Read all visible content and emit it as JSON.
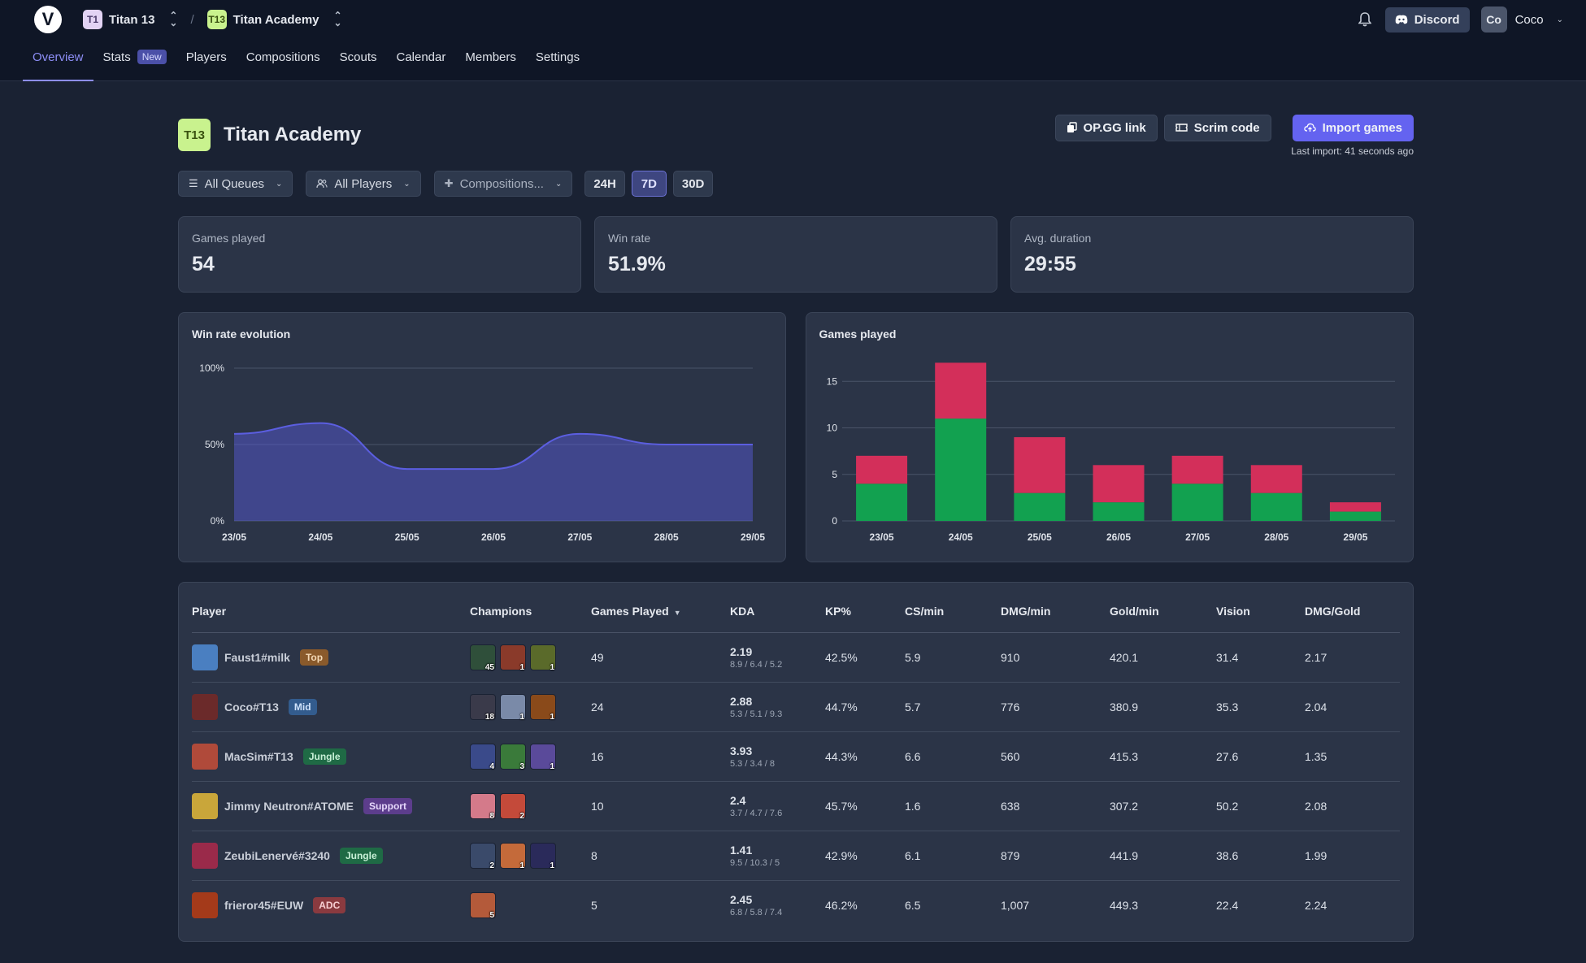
{
  "header": {
    "org_initials": "T1",
    "org_name": "Titan 13",
    "team_initials": "T13",
    "team_name": "Titan Academy",
    "discord_label": "Discord",
    "user_initials": "Co",
    "user_name": "Coco"
  },
  "nav": [
    {
      "label": "Overview",
      "active": true
    },
    {
      "label": "Stats",
      "badge": "New"
    },
    {
      "label": "Players"
    },
    {
      "label": "Compositions"
    },
    {
      "label": "Scouts"
    },
    {
      "label": "Calendar"
    },
    {
      "label": "Members"
    },
    {
      "label": "Settings"
    }
  ],
  "page": {
    "team_initials": "T13",
    "title": "Titan Academy",
    "opgg_label": "OP.GG link",
    "scrim_label": "Scrim code",
    "import_label": "Import games",
    "last_import": "Last import: 41 seconds ago"
  },
  "filters": {
    "queues": "All Queues",
    "players": "All Players",
    "compositions": "Compositions...",
    "ranges": [
      "24H",
      "7D",
      "30D"
    ],
    "active_range": "7D"
  },
  "stats": [
    {
      "label": "Games played",
      "value": "54"
    },
    {
      "label": "Win rate",
      "value": "51.9%"
    },
    {
      "label": "Avg. duration",
      "value": "29:55"
    }
  ],
  "chart_data": [
    {
      "type": "area",
      "title": "Win rate evolution",
      "x": [
        "23/05",
        "24/05",
        "25/05",
        "26/05",
        "27/05",
        "28/05",
        "29/05"
      ],
      "y_ticks": [
        "100%",
        "50%",
        "0%"
      ],
      "ylim": [
        0,
        100
      ],
      "values": [
        57,
        64,
        34,
        34,
        57,
        50,
        50
      ],
      "color": "#5b5ee0"
    },
    {
      "type": "bar",
      "title": "Games played",
      "categories": [
        "23/05",
        "24/05",
        "25/05",
        "26/05",
        "27/05",
        "28/05",
        "29/05"
      ],
      "y_ticks": [
        "15",
        "10",
        "5",
        "0"
      ],
      "ylim": [
        0,
        17
      ],
      "series": [
        {
          "values": [
            4,
            11,
            3,
            2,
            4,
            3,
            1
          ],
          "color": "#12a150"
        },
        {
          "values": [
            3,
            6,
            6,
            4,
            3,
            3,
            1
          ],
          "color": "#d32f5a"
        }
      ]
    }
  ],
  "table": {
    "headers": [
      "Player",
      "Champions",
      "Games Played",
      "KDA",
      "KP%",
      "CS/min",
      "DMG/min",
      "Gold/min",
      "Vision",
      "DMG/Gold"
    ],
    "rows": [
      {
        "player": "Faust1#milk",
        "role": "Top",
        "role_class": "role-top",
        "avatar": "#4a7fc1",
        "champs": [
          {
            "c": "#2f4f3a",
            "n": "45"
          },
          {
            "c": "#8a3a2a",
            "n": "1"
          },
          {
            "c": "#5a6a2a",
            "n": "1"
          }
        ],
        "games": "49",
        "kda": "2.19",
        "kda_sub": "8.9 / 6.4 / 5.2",
        "kp": "42.5%",
        "cs": "5.9",
        "dmg": "910",
        "gold": "420.1",
        "vision": "31.4",
        "dmggold": "2.17"
      },
      {
        "player": "Coco#T13",
        "role": "Mid",
        "role_class": "role-mid",
        "avatar": "#6b2a2a",
        "champs": [
          {
            "c": "#3a3a4a",
            "n": "18"
          },
          {
            "c": "#7a8aa8",
            "n": "1"
          },
          {
            "c": "#8a4a1a",
            "n": "1"
          }
        ],
        "games": "24",
        "kda": "2.88",
        "kda_sub": "5.3 / 5.1 / 9.3",
        "kp": "44.7%",
        "cs": "5.7",
        "dmg": "776",
        "gold": "380.9",
        "vision": "35.3",
        "dmggold": "2.04"
      },
      {
        "player": "MacSim#T13",
        "role": "Jungle",
        "role_class": "role-jungle",
        "avatar": "#b04a3a",
        "champs": [
          {
            "c": "#3a4a8a",
            "n": "4"
          },
          {
            "c": "#3a7a3a",
            "n": "3"
          },
          {
            "c": "#5a4a9a",
            "n": "1"
          }
        ],
        "games": "16",
        "kda": "3.93",
        "kda_sub": "5.3 / 3.4 / 8",
        "kp": "44.3%",
        "cs": "6.6",
        "dmg": "560",
        "gold": "415.3",
        "vision": "27.6",
        "dmggold": "1.35"
      },
      {
        "player": "Jimmy Neutron#ATOME",
        "role": "Support",
        "role_class": "role-support",
        "avatar": "#c9a63a",
        "champs": [
          {
            "c": "#d47a8a",
            "n": "8"
          },
          {
            "c": "#c44a3a",
            "n": "2"
          }
        ],
        "games": "10",
        "kda": "2.4",
        "kda_sub": "3.7 / 4.7 / 7.6",
        "kp": "45.7%",
        "cs": "1.6",
        "dmg": "638",
        "gold": "307.2",
        "vision": "50.2",
        "dmggold": "2.08"
      },
      {
        "player": "ZeubiLenervé#3240",
        "role": "Jungle",
        "role_class": "role-jungle",
        "avatar": "#9a2a4a",
        "champs": [
          {
            "c": "#3a4a6a",
            "n": "2"
          },
          {
            "c": "#c46a3a",
            "n": "1"
          },
          {
            "c": "#2a2a5a",
            "n": "1"
          }
        ],
        "games": "8",
        "kda": "1.41",
        "kda_sub": "9.5 / 10.3 / 5",
        "kp": "42.9%",
        "cs": "6.1",
        "dmg": "879",
        "gold": "441.9",
        "vision": "38.6",
        "dmggold": "1.99"
      },
      {
        "player": "frieror45#EUW",
        "role": "ADC",
        "role_class": "role-adc",
        "avatar": "#a43a1a",
        "champs": [
          {
            "c": "#b45a3a",
            "n": "5"
          }
        ],
        "games": "5",
        "kda": "2.45",
        "kda_sub": "6.8 / 5.8 / 7.4",
        "kp": "46.2%",
        "cs": "6.5",
        "dmg": "1,007",
        "gold": "449.3",
        "vision": "22.4",
        "dmggold": "2.24"
      }
    ]
  }
}
